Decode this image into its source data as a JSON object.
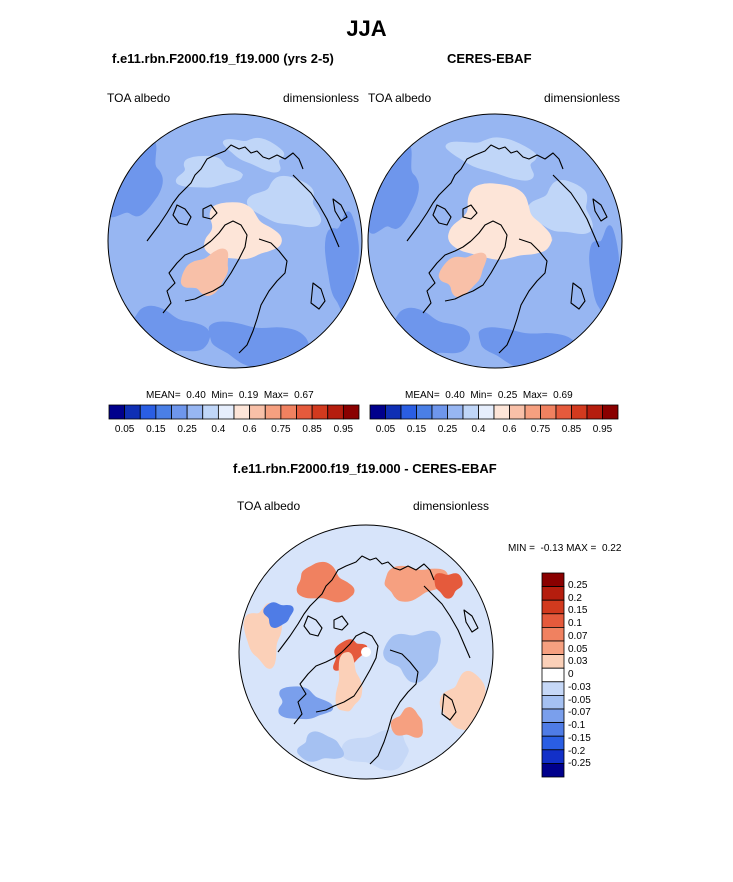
{
  "page_title": "JJA",
  "chart_data": [
    {
      "type": "heatmap",
      "projection": "north-polar-stereographic",
      "title": "f.e11.rbn.F2000.f19_f19.000 (yrs 2-5)",
      "left_label": "TOA albedo",
      "right_label": "dimensionless",
      "stats": {
        "mean_label": "MEAN=",
        "mean": "0.40",
        "min_label": "Min=",
        "min": "0.19",
        "max_label": "Max=",
        "max": "0.67"
      },
      "colorbar": {
        "orientation": "horizontal",
        "colors": [
          "#00008c",
          "#0f2fb4",
          "#2a5ee3",
          "#4a7fe6",
          "#6e96ec",
          "#97b6f2",
          "#c0d6f8",
          "#e6eefc",
          "#fde5d8",
          "#f8c0a8",
          "#f6a080",
          "#f08160",
          "#e55a3c",
          "#d23a1e",
          "#b51d0e",
          "#8a0000"
        ],
        "tick_labels": [
          "0.05",
          "0.15",
          "0.25",
          "0.4",
          "0.6",
          "0.75",
          "0.85",
          "0.95"
        ]
      }
    },
    {
      "type": "heatmap",
      "projection": "north-polar-stereographic",
      "title": "CERES-EBAF",
      "left_label": "TOA albedo",
      "right_label": "dimensionless",
      "stats": {
        "mean_label": "MEAN=",
        "mean": "0.40",
        "min_label": "Min=",
        "min": "0.25",
        "max_label": "Max=",
        "max": "0.69"
      },
      "colorbar": {
        "orientation": "horizontal",
        "colors": [
          "#00008c",
          "#0f2fb4",
          "#2a5ee3",
          "#4a7fe6",
          "#6e96ec",
          "#97b6f2",
          "#c0d6f8",
          "#e6eefc",
          "#fde5d8",
          "#f8c0a8",
          "#f6a080",
          "#f08160",
          "#e55a3c",
          "#d23a1e",
          "#b51d0e",
          "#8a0000"
        ],
        "tick_labels": [
          "0.05",
          "0.15",
          "0.25",
          "0.4",
          "0.6",
          "0.75",
          "0.85",
          "0.95"
        ]
      }
    },
    {
      "type": "heatmap",
      "projection": "north-polar-stereographic",
      "title": "f.e11.rbn.F2000.f19_f19.000 - CERES-EBAF",
      "left_label": "TOA albedo",
      "right_label": "dimensionless",
      "stats": {
        "min_label": "MIN =",
        "min": "-0.13",
        "max_label": "MAX =",
        "max": "0.22"
      },
      "colorbar": {
        "orientation": "vertical",
        "colors": [
          "#8a0000",
          "#b51d0e",
          "#d23a1e",
          "#e55a3c",
          "#f08160",
          "#f6a080",
          "#fbd0b8",
          "#ffffff",
          "#c6d8f7",
          "#a5c1f2",
          "#7a9fec",
          "#4f7ce6",
          "#2a5ee3",
          "#1230c8",
          "#00008c"
        ],
        "tick_labels": [
          "0.25",
          "0.2",
          "0.15",
          "0.1",
          "0.07",
          "0.05",
          "0.03",
          "0",
          "-0.03",
          "-0.05",
          "-0.07",
          "-0.1",
          "-0.15",
          "-0.2",
          "-0.25"
        ]
      }
    }
  ]
}
